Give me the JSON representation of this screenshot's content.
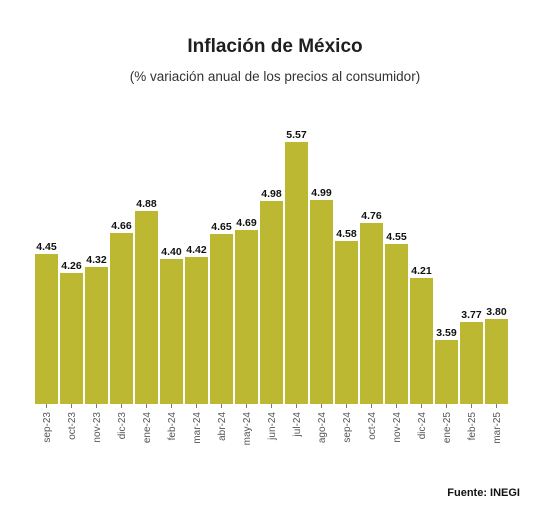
{
  "header": {
    "title": "Inflación de México",
    "subtitle": "(% variación anual de los precios al consumidor)"
  },
  "footer": {
    "source": "Fuente: INEGI"
  },
  "colors": {
    "bar": "#bcb831",
    "axis_text": "#555555",
    "label_text": "#111111"
  },
  "chart_data": {
    "type": "bar",
    "title": "Inflación de México",
    "subtitle": "(% variación anual de los precios al consumidor)",
    "xlabel": "",
    "ylabel": "",
    "categories": [
      "sep-23",
      "oct-23",
      "nov-23",
      "dic-23",
      "ene-24",
      "feb-24",
      "mar-24",
      "abr-24",
      "may-24",
      "jun-24",
      "jul-24",
      "ago-24",
      "sep-24",
      "oct-24",
      "nov-24",
      "dic-24",
      "ene-25",
      "feb-25",
      "mar-25"
    ],
    "values": [
      4.45,
      4.26,
      4.32,
      4.66,
      4.88,
      4.4,
      4.42,
      4.65,
      4.69,
      4.98,
      5.57,
      4.99,
      4.58,
      4.76,
      4.55,
      4.21,
      3.59,
      3.77,
      3.8
    ],
    "value_labels": [
      "4.45",
      "4.26",
      "4.32",
      "4.66",
      "4.88",
      "4.40",
      "4.42",
      "4.65",
      "4.69",
      "4.98",
      "5.57",
      "4.99",
      "4.58",
      "4.76",
      "4.55",
      "4.21",
      "3.59",
      "3.77",
      "3.80"
    ],
    "ylim": [
      2.95,
      5.57
    ],
    "grid": false,
    "legend": "none"
  }
}
